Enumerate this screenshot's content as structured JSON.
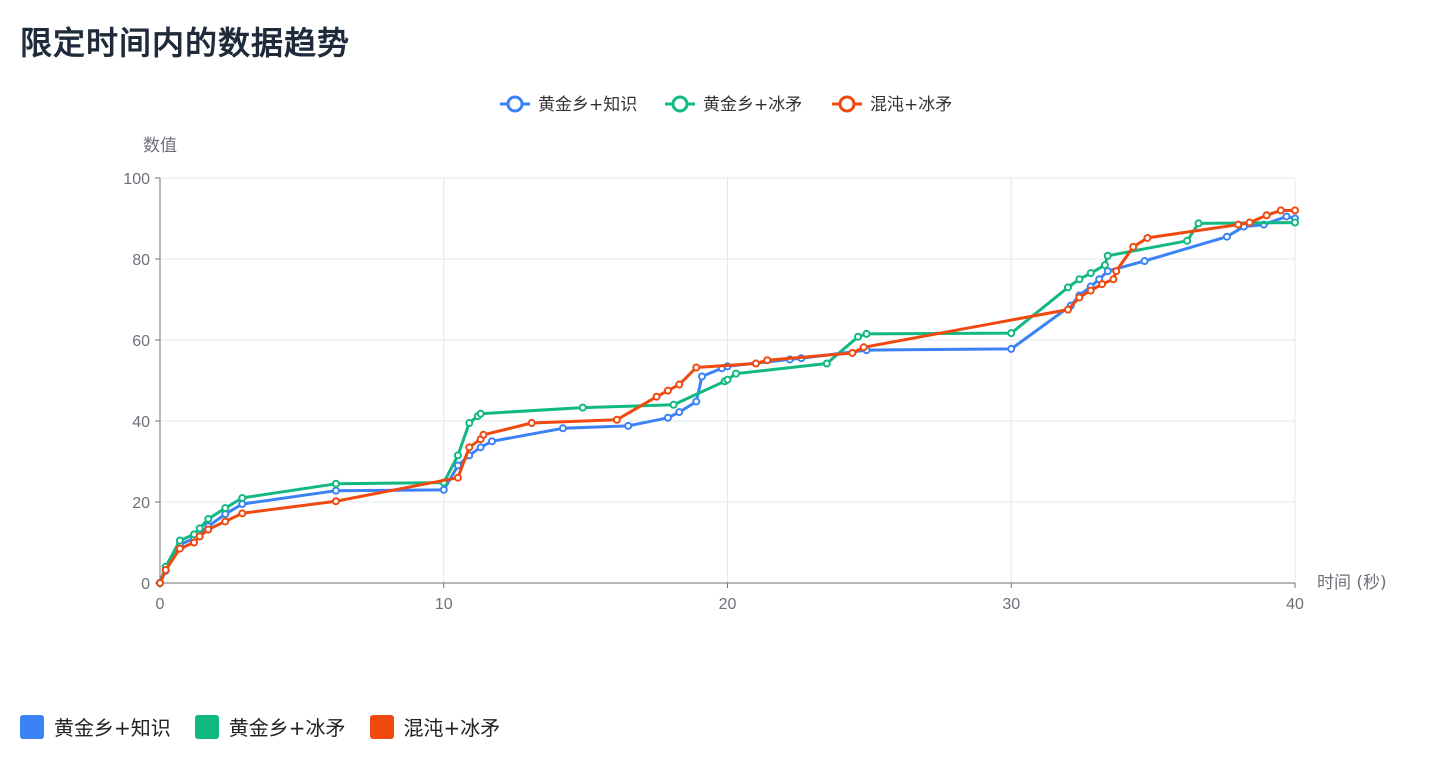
{
  "page": {
    "title": "限定时间内的数据趋势"
  },
  "chart_data": {
    "type": "line",
    "title": "",
    "xlabel": "时间 (秒)",
    "ylabel": "数值",
    "xlim": [
      0,
      40
    ],
    "ylim": [
      0,
      100
    ],
    "xticks": [
      0,
      10,
      20,
      30,
      40
    ],
    "yticks": [
      0,
      20,
      40,
      60,
      80,
      100
    ],
    "grid": true,
    "legend_position": "top-center",
    "series": [
      {
        "name": "黄金乡+知识",
        "color": "#3b82f6",
        "points": [
          [
            0,
            0
          ],
          [
            0.2,
            3
          ],
          [
            0.7,
            9.5
          ],
          [
            1.2,
            11
          ],
          [
            1.7,
            14
          ],
          [
            2.3,
            17
          ],
          [
            2.9,
            19.5
          ],
          [
            6.2,
            22.8
          ],
          [
            10,
            23
          ],
          [
            10.5,
            29
          ],
          [
            10.9,
            31.5
          ],
          [
            11.3,
            33.5
          ],
          [
            11.7,
            35
          ],
          [
            14.2,
            38.2
          ],
          [
            16.5,
            38.8
          ],
          [
            17.9,
            40.8
          ],
          [
            18.3,
            42.2
          ],
          [
            18.9,
            44.8
          ],
          [
            19.1,
            51
          ],
          [
            19.8,
            53
          ],
          [
            20.0,
            53.5
          ],
          [
            22.2,
            55.2
          ],
          [
            22.6,
            55.5
          ],
          [
            24.9,
            57.5
          ],
          [
            30,
            57.8
          ],
          [
            32.1,
            68.5
          ],
          [
            32.4,
            71
          ],
          [
            32.8,
            73.2
          ],
          [
            33.1,
            75
          ],
          [
            33.4,
            77
          ],
          [
            34.7,
            79.5
          ],
          [
            37.6,
            85.5
          ],
          [
            38.2,
            88
          ],
          [
            38.9,
            88.5
          ],
          [
            39.7,
            90.5
          ],
          [
            40,
            90
          ]
        ]
      },
      {
        "name": "黄金乡+冰矛",
        "color": "#10b981",
        "points": [
          [
            0,
            0
          ],
          [
            0.2,
            4
          ],
          [
            0.7,
            10.5
          ],
          [
            1.2,
            12
          ],
          [
            1.4,
            13.5
          ],
          [
            1.7,
            15.8
          ],
          [
            2.3,
            18.5
          ],
          [
            2.9,
            21
          ],
          [
            6.2,
            24.5
          ],
          [
            10,
            24.8
          ],
          [
            10.5,
            31.5
          ],
          [
            10.9,
            39.5
          ],
          [
            11.2,
            41.2
          ],
          [
            11.3,
            41.8
          ],
          [
            14.9,
            43.3
          ],
          [
            18.1,
            44.0
          ],
          [
            19.9,
            49.8
          ],
          [
            20.0,
            50.2
          ],
          [
            20.3,
            51.7
          ],
          [
            23.5,
            54.2
          ],
          [
            24.6,
            60.8
          ],
          [
            24.9,
            61.5
          ],
          [
            30,
            61.7
          ],
          [
            32.0,
            73
          ],
          [
            32.4,
            75
          ],
          [
            32.8,
            76.5
          ],
          [
            33.3,
            78.5
          ],
          [
            33.4,
            80.8
          ],
          [
            36.2,
            84.5
          ],
          [
            36.6,
            88.8
          ],
          [
            40,
            89
          ]
        ]
      },
      {
        "name": "混沌+冰矛",
        "color": "#f0490f",
        "points": [
          [
            0,
            0
          ],
          [
            0.2,
            3.2
          ],
          [
            0.7,
            8.5
          ],
          [
            1.2,
            10
          ],
          [
            1.4,
            11.5
          ],
          [
            1.7,
            13.2
          ],
          [
            2.3,
            15.2
          ],
          [
            2.9,
            17.2
          ],
          [
            6.2,
            20.2
          ],
          [
            10.5,
            26
          ],
          [
            10.9,
            33.5
          ],
          [
            11.3,
            35.5
          ],
          [
            11.4,
            36.6
          ],
          [
            13.1,
            39.5
          ],
          [
            16.1,
            40.3
          ],
          [
            17.5,
            46
          ],
          [
            17.9,
            47.5
          ],
          [
            18.3,
            49
          ],
          [
            18.9,
            53.2
          ],
          [
            21.0,
            54.2
          ],
          [
            21.4,
            55
          ],
          [
            24.4,
            56.8
          ],
          [
            24.8,
            58.2
          ],
          [
            32.0,
            67.5
          ],
          [
            32.4,
            70.5
          ],
          [
            32.8,
            72.2
          ],
          [
            33.2,
            73.8
          ],
          [
            33.6,
            75
          ],
          [
            33.7,
            77
          ],
          [
            34.3,
            83
          ],
          [
            34.8,
            85.2
          ],
          [
            38.0,
            88.5
          ],
          [
            38.4,
            89
          ],
          [
            39.0,
            90.8
          ],
          [
            39.5,
            92
          ],
          [
            40,
            92
          ]
        ]
      }
    ]
  },
  "bottom_legend": {
    "items": [
      {
        "label": "黄金乡+知识",
        "color": "#3b82f6"
      },
      {
        "label": "黄金乡+冰矛",
        "color": "#10b981"
      },
      {
        "label": "混沌+冰矛",
        "color": "#f0490f"
      }
    ]
  }
}
